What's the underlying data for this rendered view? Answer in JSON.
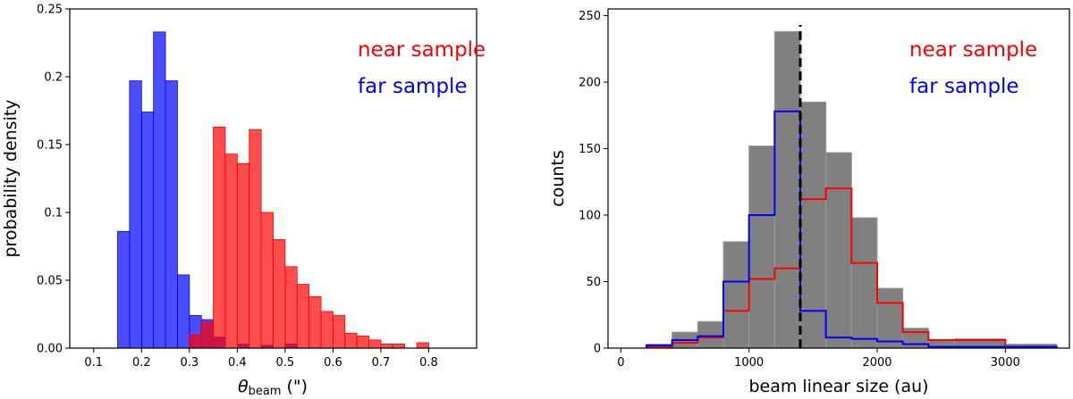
{
  "chart_data": [
    {
      "type": "bar",
      "xlabel_main": "θ",
      "xlabel_sub": "beam",
      "xlabel_unit": " (\")",
      "ylabel": "probability density",
      "xlim": [
        0.05,
        0.9
      ],
      "ylim": [
        0,
        0.25
      ],
      "xticks": [
        "0.1",
        "0.2",
        "0.3",
        "0.4",
        "0.5",
        "0.6",
        "0.7",
        "0.8"
      ],
      "yticks": [
        "0.00",
        "0.05",
        "0.1",
        "0.15",
        "0.2",
        "0.25"
      ],
      "legend": [
        {
          "label": "near sample",
          "color": "#ff0000"
        },
        {
          "label": "far sample",
          "color": "#0000ff"
        }
      ],
      "legend_position": "top-right",
      "series": [
        {
          "name": "far sample",
          "color": "#0000ff",
          "bin_edges": [
            0.15,
            0.175,
            0.2,
            0.225,
            0.25,
            0.275,
            0.3,
            0.325,
            0.35,
            0.375,
            0.4,
            0.425,
            0.45,
            0.475,
            0.5,
            0.525,
            0.55
          ],
          "values": [
            0.086,
            0.197,
            0.174,
            0.233,
            0.197,
            0.054,
            0.024,
            0.021,
            0.008,
            0.0,
            0.003,
            0.0,
            0.002,
            0.0,
            0.003,
            0.0
          ]
        },
        {
          "name": "near sample",
          "color": "#ff0000",
          "bin_edges": [
            0.3,
            0.325,
            0.35,
            0.375,
            0.4,
            0.425,
            0.45,
            0.475,
            0.5,
            0.525,
            0.55,
            0.575,
            0.6,
            0.625,
            0.65,
            0.675,
            0.7,
            0.725,
            0.75,
            0.775,
            0.8
          ],
          "values": [
            0.01,
            0.019,
            0.163,
            0.143,
            0.136,
            0.161,
            0.1,
            0.08,
            0.06,
            0.047,
            0.038,
            0.027,
            0.024,
            0.011,
            0.009,
            0.006,
            0.003,
            0.003,
            0.0,
            0.004
          ]
        }
      ]
    },
    {
      "type": "bar",
      "xlabel": "beam linear size (au)",
      "ylabel": "counts",
      "xlim": [
        -100,
        3500
      ],
      "ylim": [
        0,
        255
      ],
      "xticks": [
        "0",
        "1000",
        "2000",
        "3000"
      ],
      "yticks": [
        "0",
        "50",
        "100",
        "150",
        "200",
        "250"
      ],
      "vline_x": 1400,
      "legend": [
        {
          "label": "near sample",
          "color": "#ff0000"
        },
        {
          "label": "far sample",
          "color": "#0000ff"
        }
      ],
      "legend_position": "top-right",
      "bin_edges": [
        200,
        400,
        600,
        800,
        1000,
        1200,
        1400,
        1600,
        1800,
        2000,
        2200,
        2400,
        2600,
        3000,
        3400
      ],
      "total": {
        "color": "#808080",
        "values": [
          3,
          12,
          20,
          80,
          152,
          238,
          185,
          147,
          98,
          45,
          15,
          6,
          7,
          3
        ]
      },
      "near": {
        "color": "#ff0000",
        "values": [
          1,
          4,
          8,
          28,
          52,
          60,
          112,
          120,
          64,
          34,
          12,
          6,
          6,
          1
        ]
      },
      "far": {
        "color": "#0000ff",
        "values": [
          2,
          6,
          9,
          50,
          100,
          178,
          28,
          8,
          7,
          5,
          3,
          1,
          1,
          1
        ]
      }
    }
  ]
}
